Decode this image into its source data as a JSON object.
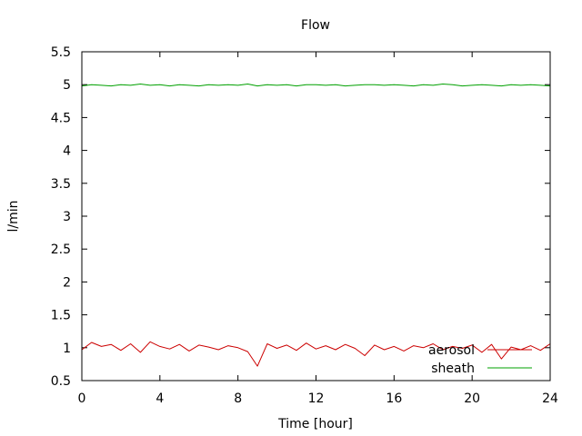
{
  "chart_data": {
    "type": "line",
    "title": "Flow",
    "xlabel": "Time [hour]",
    "ylabel": "l/min",
    "xlim": [
      0,
      24
    ],
    "ylim": [
      0.5,
      5.5
    ],
    "x_ticks": [
      0,
      4,
      8,
      12,
      16,
      20,
      24
    ],
    "x_tick_labels": [
      "0",
      "4",
      "8",
      "12",
      "16",
      "20",
      "24"
    ],
    "y_ticks": [
      0.5,
      1,
      1.5,
      2,
      2.5,
      3,
      3.5,
      4,
      4.5,
      5,
      5.5
    ],
    "y_tick_labels": [
      "0.5",
      "1",
      "1.5",
      "2",
      "2.5",
      "3",
      "3.5",
      "4",
      "4.5",
      "5",
      "5.5"
    ],
    "grid": false,
    "legend_position": "bottom-right",
    "x": [
      0,
      0.5,
      1,
      1.5,
      2,
      2.5,
      3,
      3.5,
      4,
      4.5,
      5,
      5.5,
      6,
      6.5,
      7,
      7.5,
      8,
      8.5,
      9,
      9.5,
      10,
      10.5,
      11,
      11.5,
      12,
      12.5,
      13,
      13.5,
      14,
      14.5,
      15,
      15.5,
      16,
      16.5,
      17,
      17.5,
      18,
      18.5,
      19,
      19.5,
      20,
      20.5,
      21,
      21.5,
      22,
      22.5,
      23,
      23.5,
      24
    ],
    "series": [
      {
        "name": "aerosol",
        "color": "#cc0000",
        "values": [
          0.97,
          1.08,
          1.02,
          1.05,
          0.96,
          1.06,
          0.93,
          1.09,
          1.02,
          0.98,
          1.05,
          0.95,
          1.04,
          1.01,
          0.97,
          1.03,
          1.0,
          0.94,
          0.72,
          1.06,
          0.99,
          1.04,
          0.96,
          1.07,
          0.98,
          1.03,
          0.97,
          1.05,
          0.99,
          0.88,
          1.04,
          0.97,
          1.02,
          0.95,
          1.03,
          1.0,
          1.06,
          0.97,
          1.02,
          0.99,
          1.04,
          0.93,
          1.05,
          0.83,
          1.01,
          0.97,
          1.03,
          0.96,
          1.06
        ]
      },
      {
        "name": "sheath",
        "color": "#00a000",
        "values": [
          4.98,
          5.0,
          4.99,
          4.98,
          5.0,
          4.99,
          5.01,
          4.99,
          5.0,
          4.98,
          5.0,
          4.99,
          4.98,
          5.0,
          4.99,
          5.0,
          4.99,
          5.01,
          4.98,
          5.0,
          4.99,
          5.0,
          4.98,
          5.0,
          5.0,
          4.99,
          5.0,
          4.98,
          4.99,
          5.0,
          5.0,
          4.99,
          5.0,
          4.99,
          4.98,
          5.0,
          4.99,
          5.01,
          5.0,
          4.98,
          4.99,
          5.0,
          4.99,
          4.98,
          5.0,
          4.99,
          5.0,
          4.99,
          4.98
        ]
      }
    ]
  }
}
